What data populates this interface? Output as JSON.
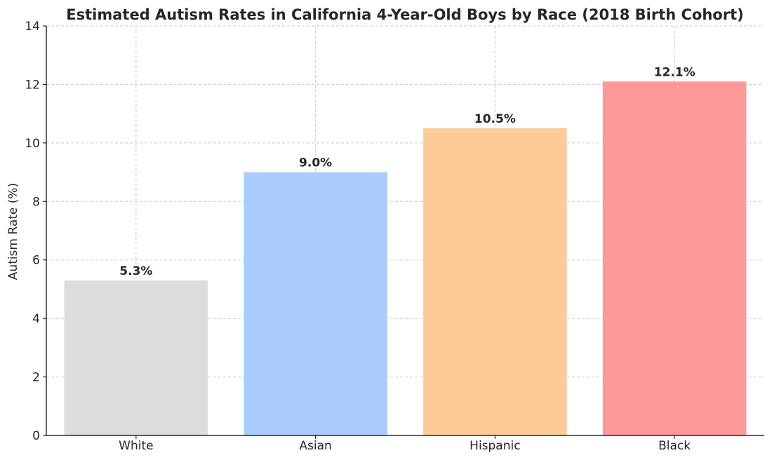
{
  "chart_data": {
    "type": "bar",
    "title": "Estimated Autism Rates in California 4-Year-Old Boys by Race (2018 Birth Cohort)",
    "xlabel": "",
    "ylabel": "Autism Rate (%)",
    "categories": [
      "White",
      "Asian",
      "Hispanic",
      "Black"
    ],
    "values": [
      5.3,
      9.0,
      10.5,
      12.1
    ],
    "value_labels": [
      "5.3%",
      "9.0%",
      "10.5%",
      "12.1%"
    ],
    "colors": [
      "#dcdcdc",
      "#aaccfb",
      "#fccb98",
      "#ff9999"
    ],
    "ylim": [
      0,
      14
    ],
    "yticks": [
      0,
      2,
      4,
      6,
      8,
      10,
      12,
      14
    ],
    "grid": true
  }
}
